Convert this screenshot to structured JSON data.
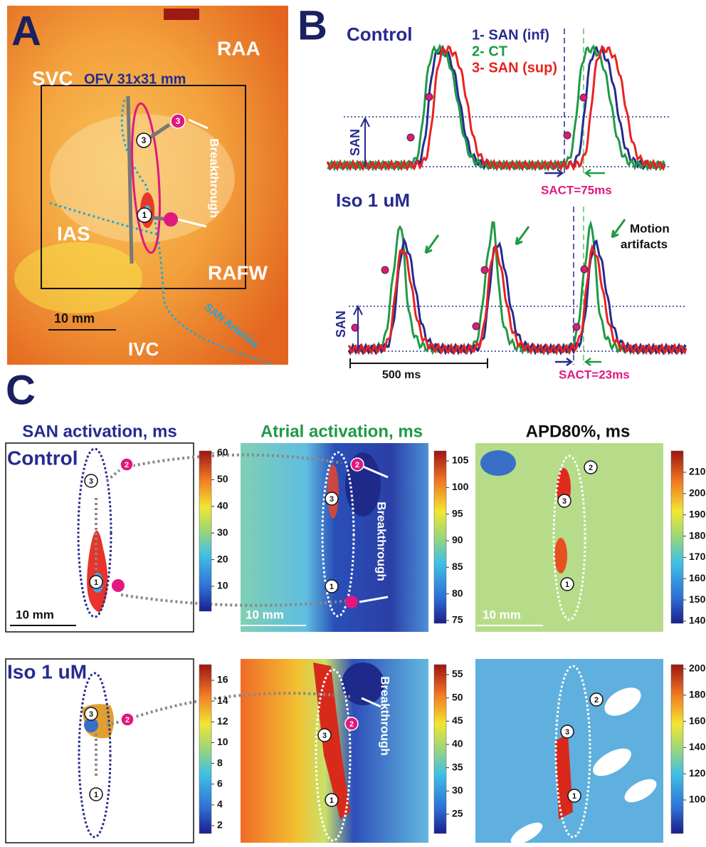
{
  "panel_a": {
    "letter": "A",
    "svc": "SVC",
    "raa": "RAA",
    "ofv": "OFV 31x31 mm",
    "ias": "IAS",
    "rafw": "RAFW",
    "ivc": "IVC",
    "scale": "10 mm",
    "breakthrough": "Breakthrough",
    "arteries": "SAN Arteries"
  },
  "markers": [
    "1",
    "2",
    "3"
  ],
  "panel_b": {
    "letter": "B",
    "control": {
      "title": "Control",
      "legend": [
        "1- SAN (inf)",
        "2- CT",
        "3- SAN (sup)"
      ],
      "axis": "SAN",
      "sact": "SACT=75ms"
    },
    "iso": {
      "title": "Iso 1 uM",
      "axis": "SAN",
      "annotation": [
        "Motion",
        "artifacts"
      ],
      "scale": "500 ms",
      "sact": "SACT=23ms"
    }
  },
  "panel_c": {
    "letter": "C",
    "columns": [
      "SAN activation, ms",
      "Atrial activation, ms",
      "APD80%, ms"
    ],
    "rows": [
      "Control",
      "Iso 1 uM"
    ],
    "scale": "10 mm",
    "breakthrough": "Breakthrough",
    "colorbars": [
      [
        [
          60,
          50,
          40,
          30,
          20,
          10
        ],
        [
          105,
          100,
          95,
          90,
          85,
          80,
          75
        ],
        [
          210,
          200,
          190,
          180,
          170,
          160,
          150,
          140
        ]
      ],
      [
        [
          16,
          14,
          12,
          10,
          8,
          6,
          4,
          2
        ],
        [
          55,
          50,
          45,
          40,
          35,
          30,
          25
        ],
        [
          200,
          180,
          160,
          140,
          120,
          100
        ]
      ]
    ]
  }
}
